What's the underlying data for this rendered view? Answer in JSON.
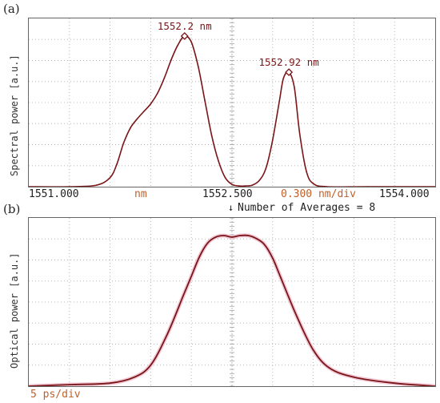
{
  "panels": {
    "a": {
      "letter": "(a)",
      "ylabel": "Spectral power [a.u.]"
    },
    "b": {
      "letter": "(b)",
      "ylabel": "Optical power [a.u.]"
    }
  },
  "spectrum_axis": {
    "tick_left": "1551.000",
    "unit": "nm",
    "tick_center": "1552.500",
    "span": "0.300 nm/div",
    "tick_right": "1554.000",
    "averages_text": "Number of Averages = 8",
    "marker": "↓"
  },
  "time_axis": {
    "scale": "5 ps/div"
  },
  "colors": {
    "trace": "#7a1518",
    "grid": "#b8b8b8",
    "accent": "#c0602a",
    "halo": "#f0c8d6"
  },
  "chart_data": [
    {
      "type": "line",
      "x_unit": "nm",
      "xlim": [
        1551.0,
        1554.0
      ],
      "ylim": [
        0,
        1
      ],
      "grid": true,
      "series": [
        {
          "x": [
            1551.0,
            1551.3,
            1551.5,
            1551.6,
            1551.65,
            1551.7,
            1551.75,
            1551.8,
            1551.85,
            1551.9,
            1551.95,
            1552.0,
            1552.05,
            1552.1,
            1552.15,
            1552.2,
            1552.25,
            1552.3,
            1552.35,
            1552.4,
            1552.45,
            1552.5,
            1552.55,
            1552.6,
            1552.65,
            1552.7,
            1552.75,
            1552.8,
            1552.85,
            1552.88,
            1552.92,
            1552.96,
            1553.0,
            1553.05,
            1553.1,
            1553.2,
            1553.5,
            1554.0
          ],
          "y": [
            0.0,
            0.0,
            0.01,
            0.06,
            0.15,
            0.29,
            0.39,
            0.45,
            0.5,
            0.55,
            0.62,
            0.72,
            0.84,
            0.94,
            1.0,
            0.96,
            0.8,
            0.57,
            0.34,
            0.17,
            0.06,
            0.015,
            0.005,
            0.005,
            0.01,
            0.04,
            0.12,
            0.31,
            0.57,
            0.72,
            0.76,
            0.66,
            0.35,
            0.1,
            0.02,
            0.0,
            0.0,
            0.0
          ]
        }
      ],
      "annotations": [
        {
          "text": "1552.2 nm",
          "x": 1552.15,
          "y": 1.0
        },
        {
          "text": "1552.92 nm",
          "x": 1552.92,
          "y": 0.76
        }
      ]
    },
    {
      "type": "line",
      "x_unit": "ps",
      "xlim": [
        -25,
        25
      ],
      "ylim": [
        0,
        1
      ],
      "grid": true,
      "series": [
        {
          "x": [
            -25,
            -20,
            -15,
            -12,
            -10,
            -8,
            -6,
            -5,
            -4,
            -3,
            -2,
            -1,
            0,
            1,
            2,
            3,
            4,
            5,
            6,
            8,
            10,
            12,
            15,
            20,
            25
          ],
          "y": [
            0.0,
            0.01,
            0.02,
            0.06,
            0.14,
            0.34,
            0.6,
            0.73,
            0.86,
            0.95,
            0.99,
            1.0,
            0.99,
            1.0,
            1.0,
            0.98,
            0.94,
            0.85,
            0.72,
            0.46,
            0.24,
            0.12,
            0.06,
            0.02,
            0.0
          ]
        }
      ],
      "annotations": []
    }
  ]
}
